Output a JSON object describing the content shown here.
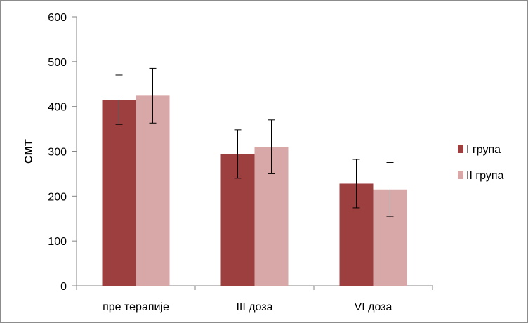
{
  "chart_data": {
    "type": "bar",
    "categories": [
      "пре терапије",
      "III доза",
      "VI доза"
    ],
    "series": [
      {
        "name": "I група",
        "color": "#9e3f3f",
        "values": [
          415,
          294,
          228
        ],
        "errors": [
          55,
          54,
          54
        ]
      },
      {
        "name": "II група",
        "color": "#d8a7a7",
        "values": [
          424,
          310,
          215
        ],
        "errors": [
          61,
          60,
          60
        ]
      }
    ],
    "xlabel": "",
    "ylabel": "CMT",
    "ylim": [
      0,
      600
    ],
    "yticks": [
      0,
      100,
      200,
      300,
      400,
      500,
      600
    ],
    "grid": false,
    "legend_position": "right"
  }
}
